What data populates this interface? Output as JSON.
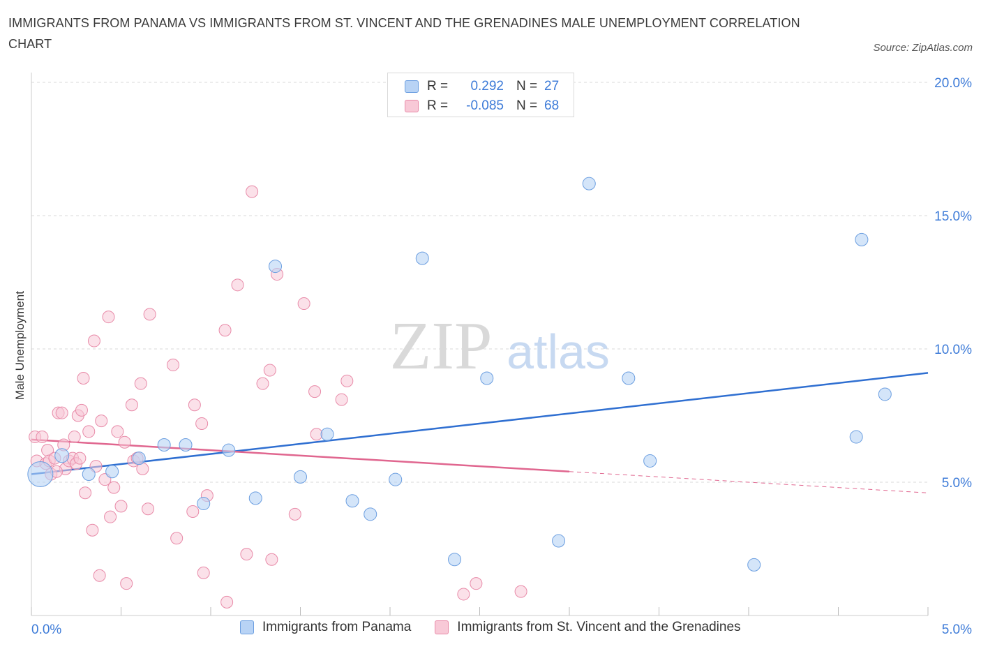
{
  "title": "IMMIGRANTS FROM PANAMA VS IMMIGRANTS FROM ST. VINCENT AND THE GRENADINES MALE UNEMPLOYMENT CORRELATION CHART",
  "source": "Source: ZipAtlas.com",
  "watermark": {
    "zip": "ZIP",
    "atlas": "atlas"
  },
  "legend": {
    "rows": [
      {
        "r_label": "R =",
        "r_value": "0.292",
        "n_label": "N =",
        "n_value": "27"
      },
      {
        "r_label": "R =",
        "r_value": "-0.085",
        "n_label": "N =",
        "n_value": "68"
      }
    ]
  },
  "bottom_legend": {
    "panama": "Immigrants from Panama",
    "stvincent": "Immigrants from St. Vincent and the Grenadines"
  },
  "colors": {
    "panama_fill": "#b8d3f5",
    "panama_stroke": "#6b9ee0",
    "panama_line": "#2f6fd1",
    "stv_fill": "#f8c9d7",
    "stv_stroke": "#e88aa8",
    "stv_line": "#e0668f",
    "tick_label": "#3d7bd8",
    "grid": "#d8d8d8"
  },
  "chart_data": {
    "type": "scatter",
    "title": "IMMIGRANTS FROM PANAMA VS IMMIGRANTS FROM ST. VINCENT AND THE GRENADINES MALE UNEMPLOYMENT CORRELATION CHART",
    "xlabel": "",
    "ylabel": "Male Unemployment",
    "xlim": [
      0,
      5
    ],
    "ylim": [
      0,
      20
    ],
    "x_tick_labels": [
      "0.0%",
      "5.0%"
    ],
    "y_ticks": [
      5,
      10,
      15,
      20
    ],
    "y_tick_labels": [
      "5.0%",
      "10.0%",
      "15.0%",
      "20.0%"
    ],
    "grid": true,
    "legend_position": "top-center",
    "series": [
      {
        "name": "Immigrants from Panama",
        "r": 0.292,
        "n": 27,
        "trend": {
          "x": [
            0,
            5
          ],
          "y": [
            5.3,
            9.1
          ]
        },
        "points": [
          [
            0.05,
            5.3,
            18
          ],
          [
            0.17,
            6.0,
            10
          ],
          [
            0.32,
            5.3,
            9
          ],
          [
            0.45,
            5.4,
            9
          ],
          [
            0.6,
            5.9,
            9
          ],
          [
            0.74,
            6.4,
            9
          ],
          [
            0.86,
            6.4,
            9
          ],
          [
            0.96,
            4.2,
            9
          ],
          [
            1.1,
            6.2,
            9
          ],
          [
            1.25,
            4.4,
            9
          ],
          [
            1.36,
            13.1,
            9
          ],
          [
            1.5,
            5.2,
            9
          ],
          [
            1.65,
            6.8,
            9
          ],
          [
            1.79,
            4.3,
            9
          ],
          [
            1.89,
            3.8,
            9
          ],
          [
            2.03,
            5.1,
            9
          ],
          [
            2.18,
            13.4,
            9
          ],
          [
            2.36,
            2.1,
            9
          ],
          [
            2.54,
            8.9,
            9
          ],
          [
            2.94,
            2.8,
            9
          ],
          [
            3.11,
            16.2,
            9
          ],
          [
            3.33,
            8.9,
            9
          ],
          [
            3.45,
            5.8,
            9
          ],
          [
            4.03,
            1.9,
            9
          ],
          [
            4.6,
            6.7,
            9
          ],
          [
            4.76,
            8.3,
            9
          ],
          [
            4.63,
            14.1,
            9
          ]
        ]
      },
      {
        "name": "Immigrants from St. Vincent and the Grenadines",
        "r": -0.085,
        "n": 68,
        "trend": {
          "x": [
            0,
            3.0
          ],
          "y": [
            6.6,
            5.4
          ],
          "dashed_to": {
            "x": 5,
            "y": 4.6
          }
        },
        "points": [
          [
            0.02,
            6.7
          ],
          [
            0.03,
            5.8
          ],
          [
            0.06,
            6.7
          ],
          [
            0.08,
            5.7
          ],
          [
            0.09,
            6.2
          ],
          [
            0.1,
            5.8
          ],
          [
            0.11,
            5.3
          ],
          [
            0.13,
            5.9
          ],
          [
            0.15,
            7.6
          ],
          [
            0.17,
            7.6
          ],
          [
            0.18,
            6.4
          ],
          [
            0.19,
            5.5
          ],
          [
            0.21,
            5.8
          ],
          [
            0.23,
            5.9
          ],
          [
            0.24,
            6.7
          ],
          [
            0.25,
            5.7
          ],
          [
            0.26,
            7.5
          ],
          [
            0.27,
            5.9
          ],
          [
            0.28,
            7.7
          ],
          [
            0.29,
            8.9
          ],
          [
            0.3,
            4.6
          ],
          [
            0.32,
            6.9
          ],
          [
            0.34,
            3.2
          ],
          [
            0.35,
            10.3
          ],
          [
            0.38,
            1.5
          ],
          [
            0.39,
            7.3
          ],
          [
            0.41,
            5.1
          ],
          [
            0.43,
            11.2
          ],
          [
            0.44,
            3.7
          ],
          [
            0.46,
            4.8
          ],
          [
            0.48,
            6.9
          ],
          [
            0.5,
            4.1
          ],
          [
            0.52,
            6.5
          ],
          [
            0.53,
            1.2
          ],
          [
            0.56,
            7.9
          ],
          [
            0.57,
            5.8
          ],
          [
            0.59,
            5.9
          ],
          [
            0.61,
            8.7
          ],
          [
            0.62,
            5.5
          ],
          [
            0.65,
            4.0
          ],
          [
            0.66,
            11.3
          ],
          [
            0.79,
            9.4
          ],
          [
            0.81,
            2.9
          ],
          [
            0.9,
            3.9
          ],
          [
            0.91,
            7.9
          ],
          [
            0.95,
            7.2
          ],
          [
            0.96,
            1.6
          ],
          [
            0.98,
            4.5
          ],
          [
            1.08,
            10.7
          ],
          [
            1.09,
            0.5
          ],
          [
            1.15,
            12.4
          ],
          [
            1.2,
            2.3
          ],
          [
            1.23,
            15.9
          ],
          [
            1.29,
            8.7
          ],
          [
            1.33,
            9.2
          ],
          [
            1.34,
            2.1
          ],
          [
            1.37,
            12.8
          ],
          [
            1.47,
            3.8
          ],
          [
            1.52,
            11.7
          ],
          [
            1.58,
            8.4
          ],
          [
            1.59,
            6.8
          ],
          [
            1.73,
            8.1
          ],
          [
            1.76,
            8.8
          ],
          [
            2.41,
            0.8
          ],
          [
            2.48,
            1.2
          ],
          [
            2.73,
            0.9
          ],
          [
            0.36,
            5.6
          ],
          [
            0.14,
            5.4
          ]
        ]
      }
    ]
  }
}
